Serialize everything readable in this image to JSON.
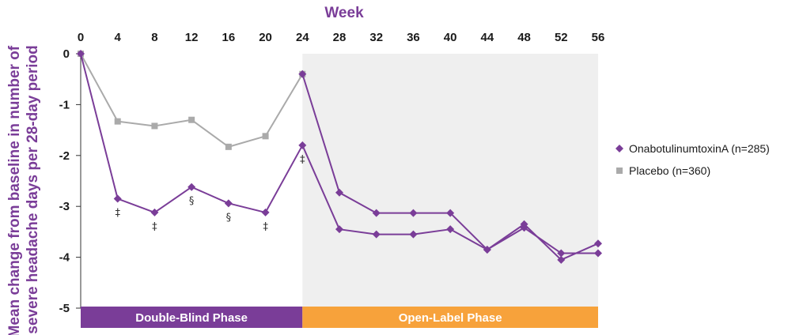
{
  "chart_data": {
    "type": "line",
    "xlabel": "Week",
    "ylabel_line1": "Mean change from baseline in number of",
    "ylabel_line2": "severe headache days per 28-day period",
    "x_ticks": [
      "0",
      "4",
      "8",
      "12",
      "16",
      "20",
      "24",
      "28",
      "32",
      "36",
      "40",
      "44",
      "48",
      "52",
      "56"
    ],
    "y_ticks": [
      "0",
      "-1",
      "-2",
      "-3",
      "-4",
      "-5"
    ],
    "xlim": [
      0,
      56
    ],
    "ylim": [
      -5,
      0
    ],
    "grid": false,
    "legend_position": "right",
    "series": [
      {
        "name": "OnabotulinumtoxinA (n=285)",
        "color": "#7a3d98",
        "marker": "diamond",
        "x": [
          0,
          4,
          8,
          12,
          16,
          20,
          24,
          28,
          32,
          36,
          40,
          44,
          48,
          52,
          56
        ],
        "values": [
          0,
          -2.85,
          -3.12,
          -2.62,
          -2.94,
          -3.12,
          -1.8,
          -3.45,
          -3.55,
          -3.55,
          -3.45,
          -3.85,
          -3.35,
          -4.05,
          -3.73
        ]
      },
      {
        "name": "Placebo (n=360)",
        "color": "#aaaaaa",
        "marker": "square",
        "x": [
          0,
          4,
          8,
          12,
          16,
          20,
          24
        ],
        "values": [
          0,
          -1.33,
          -1.42,
          -1.3,
          -1.83,
          -1.62,
          -0.4
        ]
      },
      {
        "name": "",
        "color": "#7a3d98",
        "marker": "diamond",
        "x": [
          24,
          28,
          32,
          36,
          40,
          44,
          48,
          52,
          56
        ],
        "values": [
          -0.4,
          -2.73,
          -3.13,
          -3.13,
          -3.13,
          -3.85,
          -3.42,
          -3.92,
          -3.92
        ]
      }
    ],
    "annotations": [
      {
        "x": 4,
        "series": 0,
        "symbol": "‡"
      },
      {
        "x": 8,
        "series": 0,
        "symbol": "‡"
      },
      {
        "x": 12,
        "series": 0,
        "symbol": "§"
      },
      {
        "x": 16,
        "series": 0,
        "symbol": "§"
      },
      {
        "x": 20,
        "series": 0,
        "symbol": "‡"
      },
      {
        "x": 24,
        "series": 0,
        "symbol": "‡"
      }
    ],
    "phases": [
      {
        "label": "Double-Blind Phase",
        "x_range": [
          0,
          24
        ],
        "color": "#7a3d98"
      },
      {
        "label": "Open-Label Phase",
        "x_range": [
          24,
          56
        ],
        "color": "#f7a23b",
        "shade": "#efefef"
      }
    ]
  }
}
